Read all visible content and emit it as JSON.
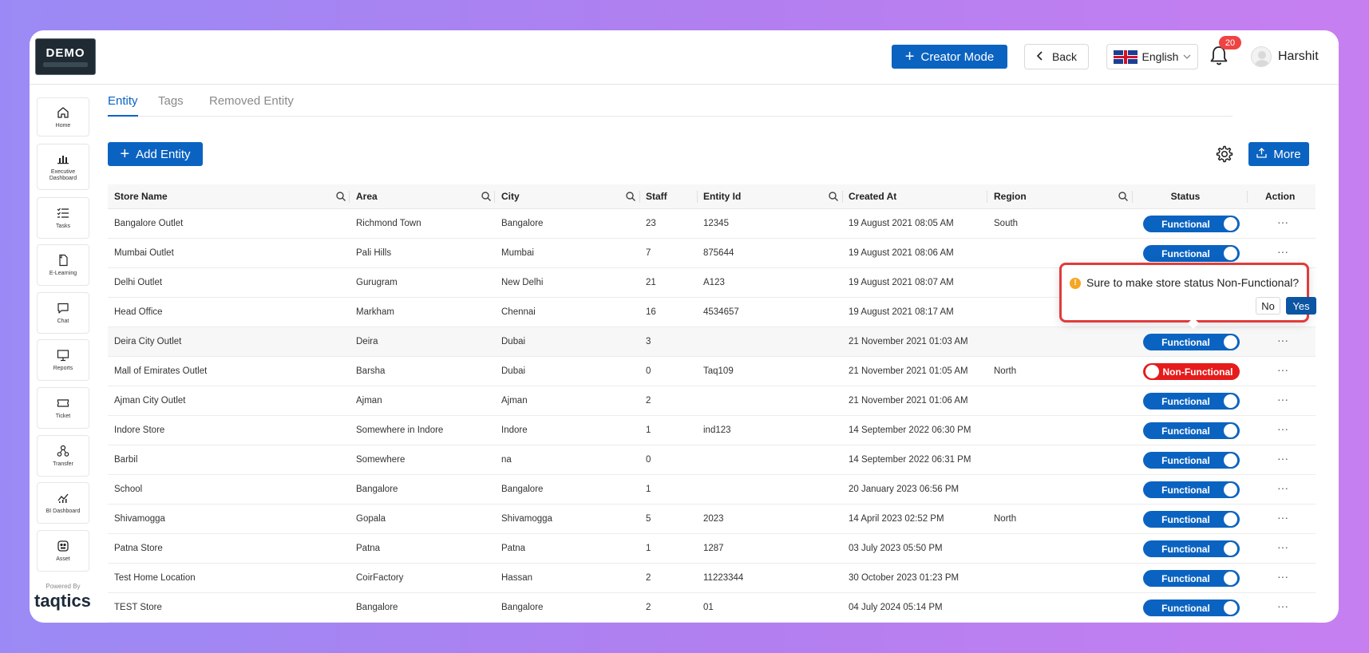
{
  "header": {
    "logo_text": "DEMO",
    "creator_mode_label": "Creator Mode",
    "back_label": "Back",
    "language": "English",
    "notification_count": "20",
    "user_name": "Harshit"
  },
  "sidebar": {
    "items": [
      {
        "label": "Home",
        "icon": "home-icon"
      },
      {
        "label": "Executive Dashboard",
        "icon": "bar-chart-icon"
      },
      {
        "label": "Tasks",
        "icon": "checklist-icon"
      },
      {
        "label": "E-Learning",
        "icon": "document-icon"
      },
      {
        "label": "Chat",
        "icon": "chat-icon"
      },
      {
        "label": "Reports",
        "icon": "presentation-icon"
      },
      {
        "label": "Ticket",
        "icon": "ticket-icon"
      },
      {
        "label": "Transfer",
        "icon": "transfer-icon"
      },
      {
        "label": "BI Dashboard",
        "icon": "line-chart-icon"
      },
      {
        "label": "Asset",
        "icon": "asset-icon"
      }
    ],
    "powered_by": "Powered By",
    "brand": "taqtics"
  },
  "tabs": [
    "Entity",
    "Tags",
    "Removed Entity"
  ],
  "toolbar": {
    "add_label": "Add Entity",
    "more_label": "More"
  },
  "table": {
    "headers": [
      "Store Name",
      "Area",
      "City",
      "Staff",
      "Entity Id",
      "Created At",
      "Region",
      "Status",
      "Action"
    ],
    "rows": [
      {
        "name": "Bangalore Outlet",
        "area": "Richmond Town",
        "city": "Bangalore",
        "staff": "23",
        "entity_id": "12345",
        "created": "19 August 2021 08:05 AM",
        "region": "South",
        "status": "Functional"
      },
      {
        "name": "Mumbai Outlet",
        "area": "Pali Hills",
        "city": "Mumbai",
        "staff": "7",
        "entity_id": "875644",
        "created": "19 August 2021 08:06 AM",
        "region": "",
        "status": "Functional"
      },
      {
        "name": "Delhi Outlet",
        "area": "Gurugram",
        "city": "New Delhi",
        "staff": "21",
        "entity_id": "A123",
        "created": "19 August 2021 08:07 AM",
        "region": "",
        "status": ""
      },
      {
        "name": "Head Office",
        "area": "Markham",
        "city": "Chennai",
        "staff": "16",
        "entity_id": "4534657",
        "created": "19 August 2021 08:17 AM",
        "region": "",
        "status": ""
      },
      {
        "name": "Deira City Outlet",
        "area": "Deira",
        "city": "Dubai",
        "staff": "3",
        "entity_id": "",
        "created": "21 November 2021 01:03 AM",
        "region": "",
        "status": "Functional"
      },
      {
        "name": "Mall of Emirates Outlet",
        "area": "Barsha",
        "city": "Dubai",
        "staff": "0",
        "entity_id": "Taq109",
        "created": "21 November 2021 01:05 AM",
        "region": "North",
        "status": "Non-Functional"
      },
      {
        "name": "Ajman City Outlet",
        "area": "Ajman",
        "city": "Ajman",
        "staff": "2",
        "entity_id": "",
        "created": "21 November 2021 01:06 AM",
        "region": "",
        "status": "Functional"
      },
      {
        "name": "Indore Store",
        "area": "Somewhere in Indore",
        "city": "Indore",
        "staff": "1",
        "entity_id": "ind123",
        "created": "14 September 2022 06:30 PM",
        "region": "",
        "status": "Functional"
      },
      {
        "name": "Barbil",
        "area": "Somewhere",
        "city": "na",
        "staff": "0",
        "entity_id": "",
        "created": "14 September 2022 06:31 PM",
        "region": "",
        "status": "Functional"
      },
      {
        "name": "School",
        "area": "Bangalore",
        "city": "Bangalore",
        "staff": "1",
        "entity_id": "",
        "created": "20 January 2023 06:56 PM",
        "region": "",
        "status": "Functional"
      },
      {
        "name": "Shivamogga",
        "area": "Gopala",
        "city": "Shivamogga",
        "staff": "5",
        "entity_id": "2023",
        "created": "14 April 2023 02:52 PM",
        "region": "North",
        "status": "Functional"
      },
      {
        "name": "Patna Store",
        "area": "Patna",
        "city": "Patna",
        "staff": "1",
        "entity_id": "1287",
        "created": "03 July 2023 05:50 PM",
        "region": "",
        "status": "Functional"
      },
      {
        "name": "Test Home Location",
        "area": "CoirFactory",
        "city": "Hassan",
        "staff": "2",
        "entity_id": "11223344",
        "created": "30 October 2023 01:23 PM",
        "region": "",
        "status": "Functional"
      },
      {
        "name": "TEST Store",
        "area": "Bangalore",
        "city": "Bangalore",
        "staff": "2",
        "entity_id": "01",
        "created": "04 July 2024 05:14 PM",
        "region": "",
        "status": "Functional"
      }
    ],
    "action_label": "···"
  },
  "popover": {
    "message": "Sure to make store status Non-Functional?",
    "no_label": "No",
    "yes_label": "Yes"
  },
  "colors": {
    "primary": "#0b63c1",
    "danger": "#e61b1b",
    "popover_border": "#e23b3b"
  }
}
